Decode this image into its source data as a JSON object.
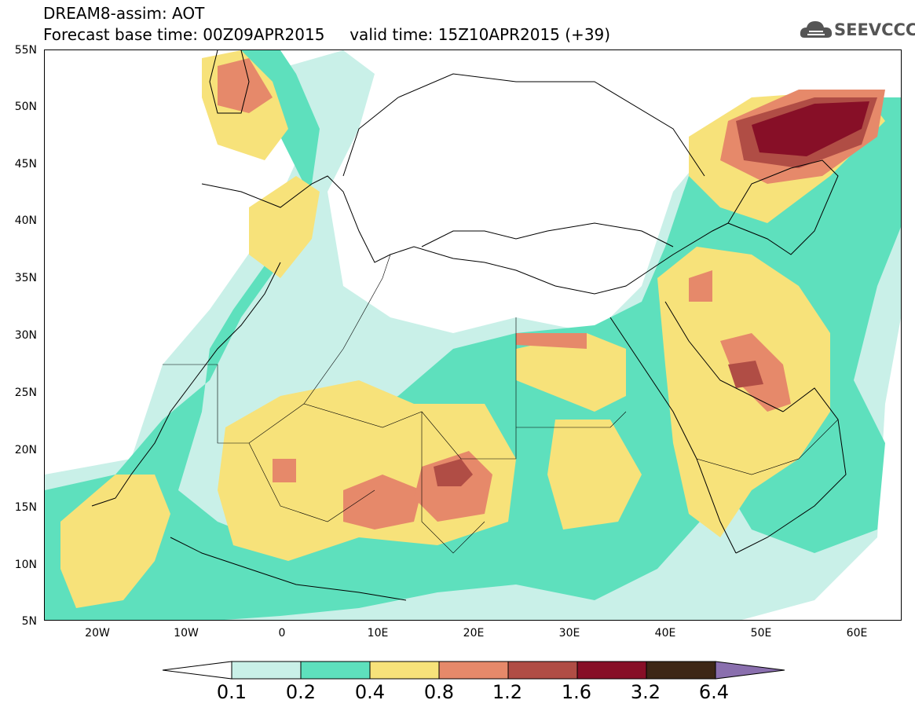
{
  "title": {
    "line1": "DREAM8-assim: AOT",
    "line2": "Forecast base time: 00Z09APR2015     valid time: 15Z10APR2015 (+39)"
  },
  "logo": {
    "text": "SEEVCCC",
    "icon": "cloud-icon"
  },
  "axes": {
    "lat_labels": [
      "55N",
      "50N",
      "45N",
      "40N",
      "35N",
      "30N",
      "25N",
      "20N",
      "15N",
      "10N",
      "5N"
    ],
    "lon_labels": [
      "20W",
      "10W",
      "0",
      "10E",
      "20E",
      "30E",
      "40E",
      "50E",
      "60E"
    ]
  },
  "colorbar": {
    "labels": [
      "0.1",
      "0.2",
      "0.4",
      "0.8",
      "1.2",
      "1.6",
      "3.2",
      "6.4"
    ],
    "colors": [
      "#ffffff",
      "#c9f0e8",
      "#5ee0bd",
      "#f7e27a",
      "#e6896a",
      "#b04d45",
      "#870f27",
      "#3d2716",
      "#8a6fae"
    ]
  }
}
